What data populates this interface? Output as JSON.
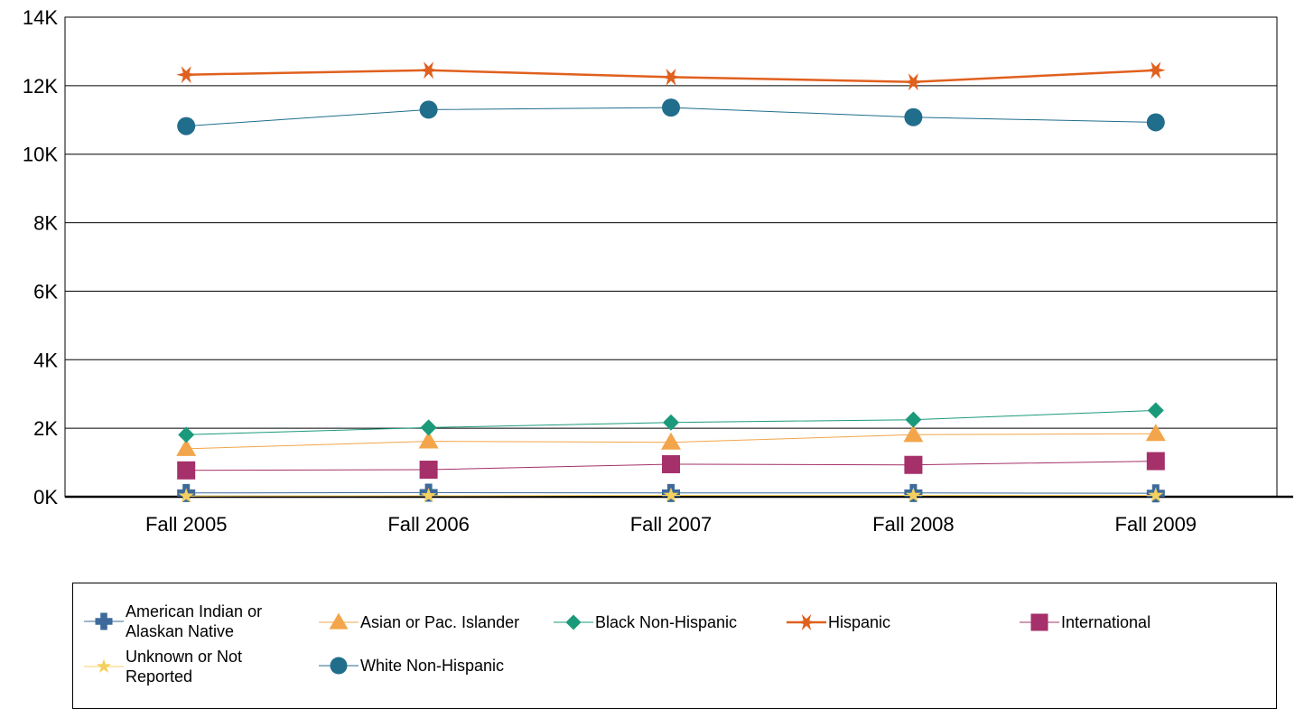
{
  "chart_data": {
    "type": "line",
    "title": "",
    "xlabel": "",
    "ylabel": "",
    "categories": [
      "Fall 2005",
      "Fall 2006",
      "Fall 2007",
      "Fall 2008",
      "Fall 2009"
    ],
    "ylim": [
      0,
      14000
    ],
    "yticks": [
      "0K",
      "2K",
      "4K",
      "6K",
      "8K",
      "10K",
      "12K",
      "14K"
    ],
    "grid": true,
    "legend_position": "bottom",
    "series": [
      {
        "name": "American Indian or Alaskan Native",
        "values": [
          110,
          120,
          110,
          110,
          100
        ],
        "color": "#3d6a9a",
        "marker": "cross"
      },
      {
        "name": "Asian or Pac. Islander",
        "values": [
          1400,
          1620,
          1590,
          1810,
          1840
        ],
        "color": "#f2a54a",
        "marker": "triangle"
      },
      {
        "name": "Black Non-Hispanic",
        "values": [
          1810,
          2020,
          2170,
          2250,
          2520
        ],
        "color": "#1a9a7a",
        "marker": "diamond"
      },
      {
        "name": "Hispanic",
        "values": [
          12320,
          12450,
          12250,
          12110,
          12450
        ],
        "color": "#e0601e",
        "marker": "star6"
      },
      {
        "name": "International",
        "values": [
          770,
          790,
          950,
          930,
          1040
        ],
        "color": "#a5306a",
        "marker": "square"
      },
      {
        "name": "Unknown or Not Reported",
        "values": [
          20,
          30,
          40,
          40,
          40
        ],
        "color": "#f5d060",
        "marker": "star5"
      },
      {
        "name": "White Non-Hispanic",
        "values": [
          10820,
          11300,
          11360,
          11080,
          10930
        ],
        "color": "#206e8c",
        "marker": "circle"
      }
    ]
  }
}
